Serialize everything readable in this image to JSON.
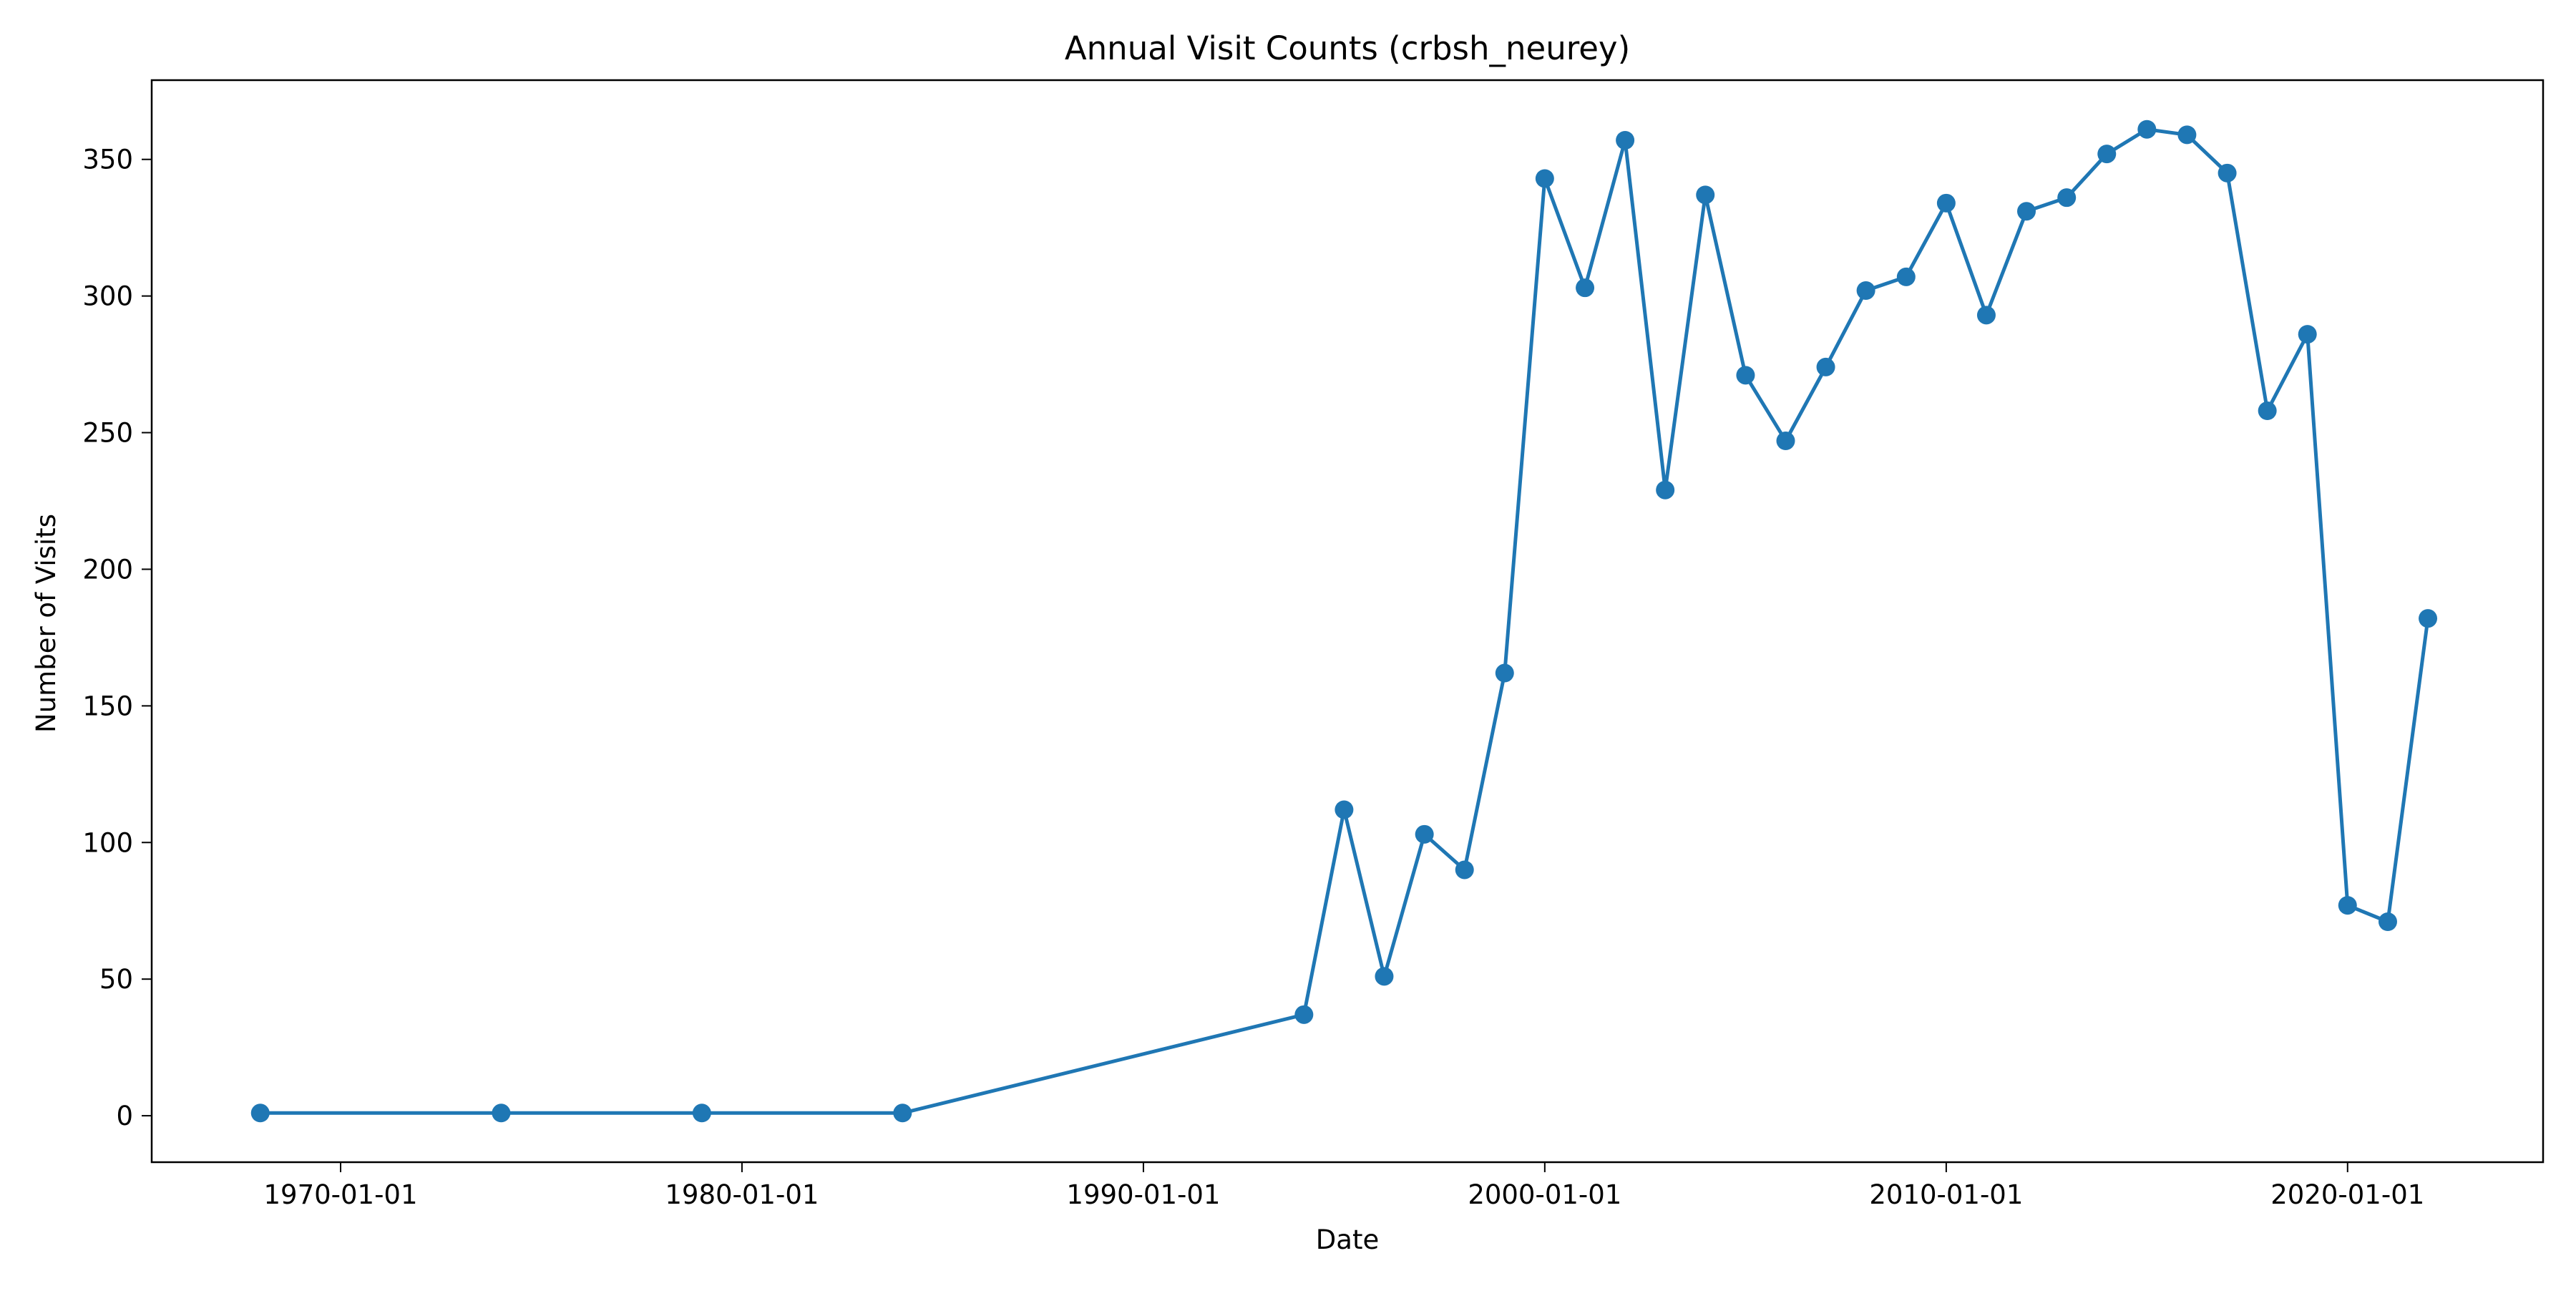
{
  "chart_data": {
    "type": "line",
    "title": "Annual Visit Counts (crbsh_neurey)",
    "xlabel": "Date",
    "ylabel": "Number of Visits",
    "x_tick_labels": [
      "1970-01-01",
      "1980-01-01",
      "1990-01-01",
      "2000-01-01",
      "2010-01-01",
      "2020-01-01"
    ],
    "y_tick_labels": [
      "0",
      "50",
      "100",
      "150",
      "200",
      "250",
      "300",
      "350"
    ],
    "y_ticks": [
      0,
      50,
      100,
      150,
      200,
      250,
      300,
      350
    ],
    "xlim": [
      "1965-04-18",
      "2024-11-14"
    ],
    "ylim": [
      -17,
      379
    ],
    "grid": false,
    "marker": "circle",
    "line_color": "#1f77b4",
    "series": [
      {
        "x": [
          "1968-01-01",
          "1974-01-01",
          "1979-01-01",
          "1984-01-01",
          "1994-01-01",
          "1995-01-01",
          "1996-01-01",
          "1997-01-01",
          "1998-01-01",
          "1999-01-01",
          "2000-01-01",
          "2001-01-01",
          "2002-01-01",
          "2003-01-01",
          "2004-01-01",
          "2005-01-01",
          "2006-01-01",
          "2007-01-01",
          "2008-01-01",
          "2009-01-01",
          "2010-01-01",
          "2011-01-01",
          "2012-01-01",
          "2013-01-01",
          "2014-01-01",
          "2015-01-01",
          "2016-01-01",
          "2017-01-01",
          "2018-01-01",
          "2019-01-01",
          "2020-01-01",
          "2021-01-01",
          "2022-01-01"
        ],
        "values": [
          1,
          1,
          1,
          1,
          37,
          112,
          51,
          103,
          90,
          162,
          343,
          303,
          357,
          229,
          337,
          271,
          247,
          274,
          302,
          307,
          334,
          293,
          331,
          336,
          352,
          361,
          359,
          345,
          258,
          286,
          77,
          71,
          182
        ]
      }
    ]
  }
}
